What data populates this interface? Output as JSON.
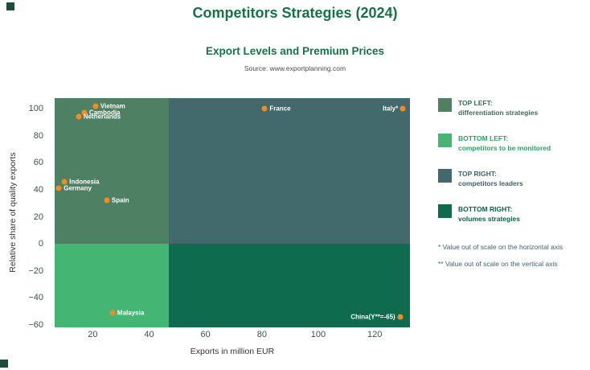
{
  "page": {
    "title": "Competitors Strategies (2024)",
    "subtitle": "Export Levels and Premium Prices",
    "source": "Source: www.exportplanning.com"
  },
  "chart_data": {
    "type": "scatter",
    "title": "Export Levels and Premium Prices",
    "xlabel": "Exports in million EUR",
    "ylabel": "Relative share of quality exports",
    "xlim": [
      6.5,
      132.5
    ],
    "ylim": [
      -62,
      108
    ],
    "x_ticks": [
      20,
      40,
      60,
      80,
      100,
      120
    ],
    "y_ticks": [
      100,
      80,
      60,
      40,
      20,
      0,
      -20,
      -40,
      -60
    ],
    "grid": false,
    "legend_position": "right",
    "quadrant_split": {
      "x": 47,
      "y": 0
    },
    "quadrant_colors": {
      "top_left": "#4e8164",
      "top_right": "#426a6c",
      "bottom_left": "#45b574",
      "bottom_right": "#0e6b4e"
    },
    "point_color": "#f28b20",
    "point_label_color": "#ffffff",
    "points": [
      {
        "label": "Vietnam",
        "x": 21,
        "y": 102,
        "label_side": "right"
      },
      {
        "label": "Cambodia",
        "x": 17,
        "y": 97,
        "label_side": "right"
      },
      {
        "label": "Netherlands",
        "x": 15,
        "y": 94,
        "label_side": "right"
      },
      {
        "label": "France",
        "x": 81,
        "y": 100,
        "label_side": "right"
      },
      {
        "label": "Italy*",
        "x": 130,
        "y": 100,
        "label_side": "left"
      },
      {
        "label": "Indonesia",
        "x": 10,
        "y": 46,
        "label_side": "right"
      },
      {
        "label": "Germany",
        "x": 8,
        "y": 41,
        "label_side": "right"
      },
      {
        "label": "Spain",
        "x": 25,
        "y": 32,
        "label_side": "right"
      },
      {
        "label": "Malaysia",
        "x": 27,
        "y": -51,
        "label_side": "right"
      },
      {
        "label": "China(Y**=-65)",
        "x": 129,
        "y": -54,
        "label_side": "left"
      }
    ],
    "notes": [
      "* Value out of scale on the horizontal axis",
      "** Value out of scale on the vertical axis"
    ]
  },
  "legend": {
    "items": [
      {
        "title": "TOP LEFT:",
        "desc": "differentiation strategies",
        "color": "#4e8164",
        "text_color": "#3c6b55"
      },
      {
        "title": "BOTTOM LEFT:",
        "desc": "competitors to be monitored",
        "color": "#45b574",
        "text_color": "#2da163"
      },
      {
        "title": "TOP RIGHT:",
        "desc": "competitors leaders",
        "color": "#426a6c",
        "text_color": "#3c6466"
      },
      {
        "title": "BOTTOM RIGHT:",
        "desc": "volumes strategies",
        "color": "#0e6b4e",
        "text_color": "#0d5f45"
      }
    ]
  }
}
